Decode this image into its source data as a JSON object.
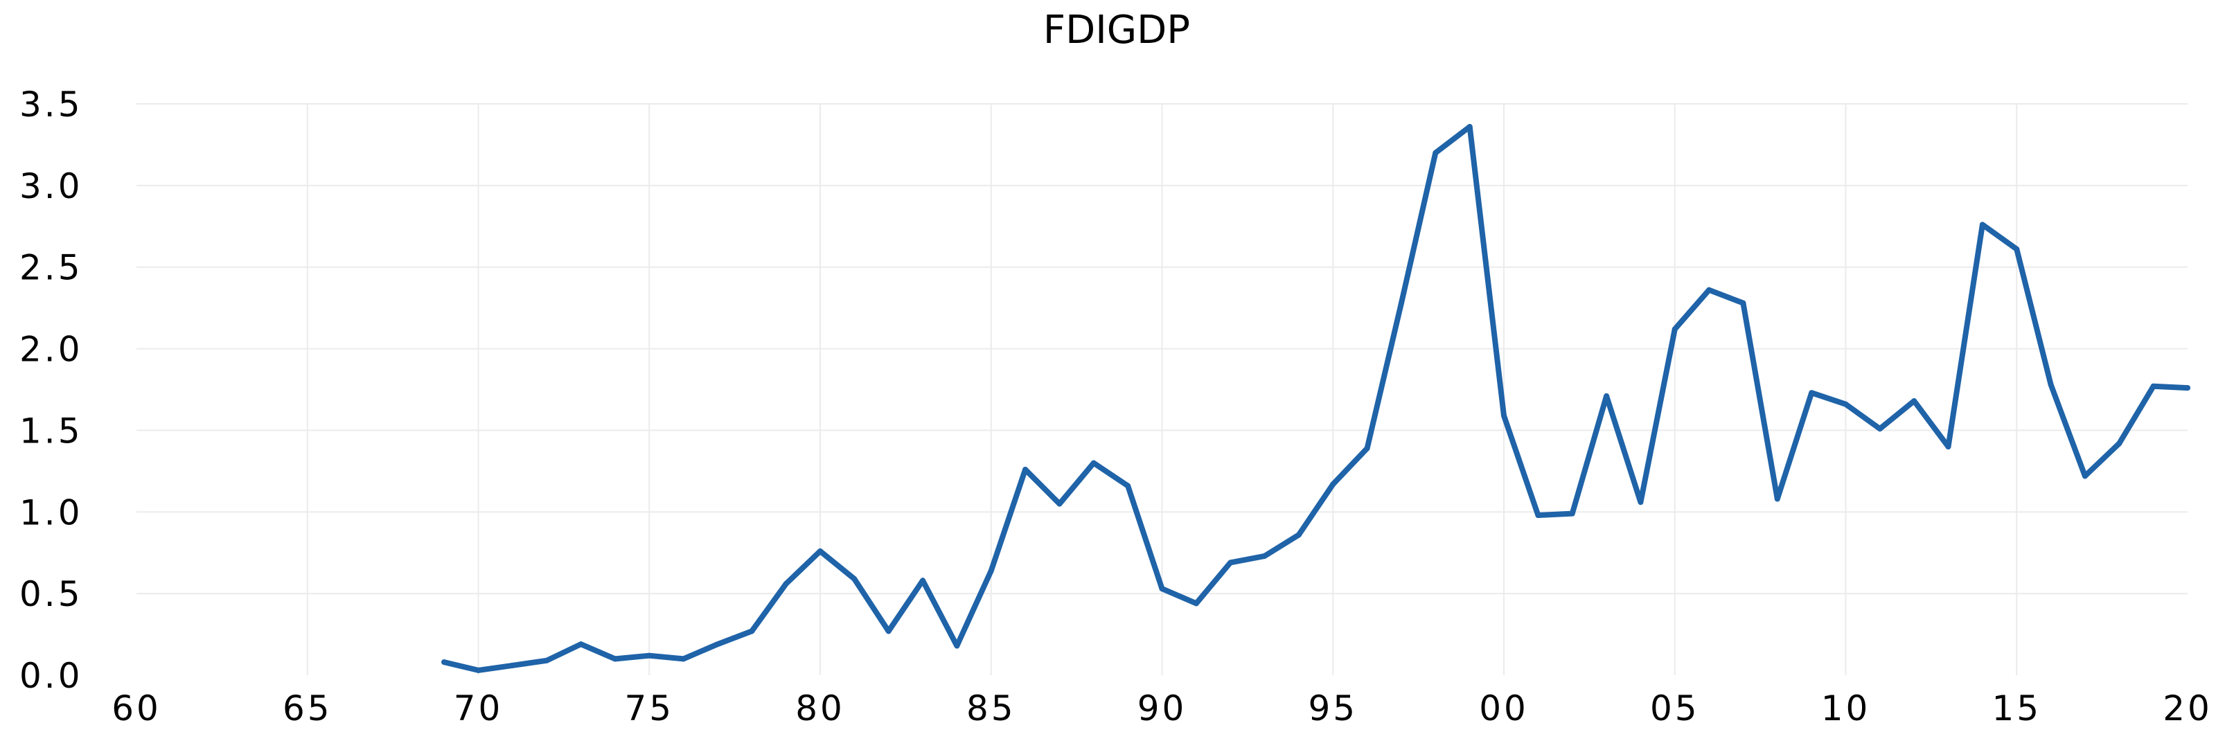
{
  "chart_data": {
    "type": "line",
    "title": "FDIGDP",
    "xlabel": "",
    "ylabel": "",
    "grid": true,
    "colors": {
      "series": "#1f63a8"
    },
    "xlim": [
      1960,
      2020
    ],
    "ylim": [
      0.0,
      3.5
    ],
    "x_ticks": [
      {
        "value": 1960,
        "label": "60"
      },
      {
        "value": 1965,
        "label": "65"
      },
      {
        "value": 1970,
        "label": "70"
      },
      {
        "value": 1975,
        "label": "75"
      },
      {
        "value": 1980,
        "label": "80"
      },
      {
        "value": 1985,
        "label": "85"
      },
      {
        "value": 1990,
        "label": "90"
      },
      {
        "value": 1995,
        "label": "95"
      },
      {
        "value": 2000,
        "label": "00"
      },
      {
        "value": 2005,
        "label": "05"
      },
      {
        "value": 2010,
        "label": "10"
      },
      {
        "value": 2015,
        "label": "15"
      },
      {
        "value": 2020,
        "label": "20"
      }
    ],
    "y_ticks": [
      {
        "value": 0.0,
        "label": "0.0"
      },
      {
        "value": 0.5,
        "label": "0.5"
      },
      {
        "value": 1.0,
        "label": "1.0"
      },
      {
        "value": 1.5,
        "label": "1.5"
      },
      {
        "value": 2.0,
        "label": "2.0"
      },
      {
        "value": 2.5,
        "label": "2.5"
      },
      {
        "value": 3.0,
        "label": "3.0"
      },
      {
        "value": 3.5,
        "label": "3.5"
      }
    ],
    "series": [
      {
        "x": [
          1969,
          1970,
          1971,
          1972,
          1973,
          1974,
          1975,
          1976,
          1977,
          1978,
          1979,
          1980,
          1981,
          1982,
          1983,
          1984,
          1985,
          1986,
          1987,
          1988,
          1989,
          1990,
          1991,
          1992,
          1993,
          1994,
          1995,
          1996,
          1997,
          1998,
          1999,
          2000,
          2001,
          2002,
          2003,
          2004,
          2005,
          2006,
          2007,
          2008,
          2009,
          2010,
          2011,
          2012,
          2013,
          2014,
          2015,
          2016,
          2017,
          2018,
          2019,
          2020
        ],
        "values": [
          0.08,
          0.03,
          0.06,
          0.09,
          0.19,
          0.1,
          0.12,
          0.1,
          0.19,
          0.27,
          0.56,
          0.76,
          0.59,
          0.27,
          0.58,
          0.18,
          0.64,
          1.26,
          1.05,
          1.3,
          1.16,
          0.53,
          0.44,
          0.69,
          0.73,
          0.86,
          1.17,
          1.39,
          2.28,
          3.2,
          3.36,
          1.59,
          0.98,
          0.99,
          1.71,
          1.06,
          2.12,
          2.36,
          2.28,
          1.08,
          1.73,
          1.66,
          1.51,
          1.68,
          1.4,
          2.76,
          2.61,
          1.78,
          1.22,
          1.42,
          1.77,
          1.76
        ]
      }
    ]
  }
}
